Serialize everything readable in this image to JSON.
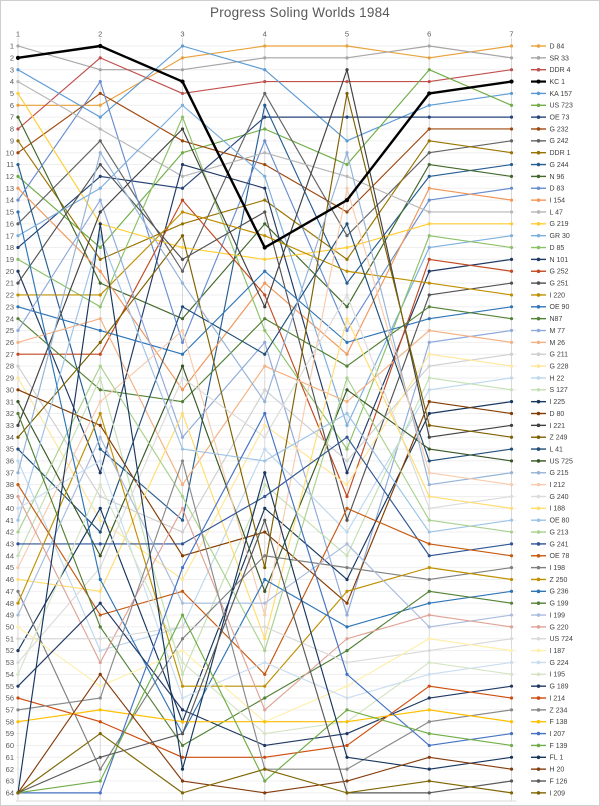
{
  "window_title": "Progress Soling Worlds 1984",
  "chart_data": {
    "type": "line",
    "title": "Progress Soling Worlds 1984",
    "xlabel": "",
    "ylabel": "",
    "x_ticks": [
      1,
      2,
      3,
      4,
      5,
      6,
      7
    ],
    "y_ticks": [
      1,
      2,
      3,
      4,
      5,
      6,
      7,
      8,
      9,
      10,
      11,
      12,
      13,
      14,
      15,
      16,
      17,
      18,
      19,
      20,
      21,
      22,
      23,
      24,
      25,
      26,
      27,
      28,
      29,
      30,
      31,
      32,
      33,
      34,
      35,
      36,
      37,
      38,
      39,
      40,
      41,
      42,
      43,
      44,
      45,
      46,
      47,
      48,
      49,
      50,
      51,
      52,
      53,
      54,
      55,
      56,
      57,
      58,
      59,
      60,
      61,
      62,
      63,
      64
    ],
    "y_axis_inverted": true,
    "xlim": [
      1,
      7
    ],
    "ylim": [
      1,
      64
    ],
    "grid": true,
    "legend_position": "right",
    "axis_color": "#595959",
    "legend_text_color": "#404040",
    "gridline_color_h": "#efefef",
    "gridline_color_v": "#d9d9d9",
    "series": [
      {
        "label": "D 84",
        "color": "#E9A23B",
        "ranks": [
          6,
          6,
          2,
          1,
          1,
          2,
          1
        ]
      },
      {
        "label": "SR 33",
        "color": "#A6A6A6",
        "ranks": [
          1,
          3,
          3,
          2,
          2,
          1,
          2
        ]
      },
      {
        "label": "DDR 4",
        "color": "#C0504D",
        "ranks": [
          8,
          2,
          5,
          4,
          4,
          4,
          3
        ]
      },
      {
        "label": "KC 1",
        "color": "#000000",
        "ranks": [
          2,
          1,
          4,
          18,
          14,
          5,
          4
        ],
        "width": 2.4
      },
      {
        "label": "KA 157",
        "color": "#5B9BD5",
        "ranks": [
          3,
          7,
          1,
          3,
          9,
          6,
          5
        ]
      },
      {
        "label": "US 723",
        "color": "#70AD47",
        "ranks": [
          12,
          18,
          10,
          8,
          11,
          3,
          6
        ]
      },
      {
        "label": "OE 73",
        "color": "#264478",
        "ranks": [
          18,
          12,
          13,
          7,
          7,
          7,
          7
        ]
      },
      {
        "label": "G 232",
        "color": "#9E480E",
        "ranks": [
          10,
          5,
          9,
          11,
          15,
          8,
          8
        ]
      },
      {
        "label": "G 242",
        "color": "#636363",
        "ranks": [
          16,
          9,
          20,
          5,
          17,
          10,
          9
        ]
      },
      {
        "label": "DDR 1",
        "color": "#997300",
        "ranks": [
          9,
          19,
          16,
          14,
          19,
          9,
          10
        ]
      },
      {
        "label": "G 244",
        "color": "#255E91",
        "ranks": [
          11,
          35,
          41,
          6,
          21,
          12,
          11
        ]
      },
      {
        "label": "N 96",
        "color": "#43682B",
        "ranks": [
          7,
          21,
          24,
          16,
          23,
          11,
          12
        ]
      },
      {
        "label": "D 83",
        "color": "#698ED0",
        "ranks": [
          14,
          4,
          26,
          9,
          25,
          14,
          13
        ]
      },
      {
        "label": "I 154",
        "color": "#F1975A",
        "ranks": [
          13,
          20,
          30,
          21,
          27,
          13,
          14
        ]
      },
      {
        "label": "L 47",
        "color": "#B7B7B7",
        "ranks": [
          4,
          8,
          12,
          10,
          12,
          15,
          15
        ]
      },
      {
        "label": "G 219",
        "color": "#FFCD33",
        "ranks": [
          5,
          16,
          18,
          19,
          18,
          16,
          16
        ]
      },
      {
        "label": "GR 30",
        "color": "#7CAFDD",
        "ranks": [
          17,
          13,
          6,
          12,
          33,
          18,
          17
        ]
      },
      {
        "label": "D 85",
        "color": "#8CC168",
        "ranks": [
          19,
          23,
          7,
          25,
          35,
          17,
          18
        ]
      },
      {
        "label": "N 101",
        "color": "#203864",
        "ranks": [
          20,
          37,
          11,
          13,
          37,
          20,
          19
        ]
      },
      {
        "label": "G 252",
        "color": "#C24A22",
        "ranks": [
          27,
          27,
          14,
          22,
          39,
          19,
          20
        ]
      },
      {
        "label": "G 251",
        "color": "#525252",
        "ranks": [
          21,
          11,
          19,
          15,
          41,
          22,
          21
        ]
      },
      {
        "label": "I 220",
        "color": "#BF8F00",
        "ranks": [
          22,
          22,
          15,
          17,
          20,
          21,
          22
        ]
      },
      {
        "label": "OE 90",
        "color": "#2E75B6",
        "ranks": [
          23,
          25,
          27,
          20,
          26,
          24,
          23
        ]
      },
      {
        "label": "N87",
        "color": "#538135",
        "ranks": [
          24,
          30,
          31,
          24,
          28,
          23,
          24
        ]
      },
      {
        "label": "M 77",
        "color": "#8FAADC",
        "ranks": [
          25,
          14,
          34,
          26,
          49,
          26,
          25
        ]
      },
      {
        "label": "M 26",
        "color": "#F4B183",
        "ranks": [
          26,
          24,
          38,
          28,
          31,
          25,
          26
        ]
      },
      {
        "label": "G 211",
        "color": "#D0CECE",
        "ranks": [
          28,
          39,
          42,
          30,
          36,
          28,
          27
        ]
      },
      {
        "label": "G 228",
        "color": "#FFE699",
        "ranks": [
          29,
          41,
          46,
          33,
          38,
          27,
          28
        ]
      },
      {
        "label": "H 22",
        "color": "#BDD7EE",
        "ranks": [
          36,
          52,
          50,
          35,
          42,
          30,
          29
        ]
      },
      {
        "label": "S 127",
        "color": "#C5E0B4",
        "ranks": [
          44,
          29,
          54,
          38,
          44,
          29,
          30
        ]
      },
      {
        "label": "I 225",
        "color": "#17375D",
        "ranks": [
          52,
          40,
          58,
          40,
          46,
          32,
          31
        ]
      },
      {
        "label": "D 80",
        "color": "#833C00",
        "ranks": [
          30,
          33,
          44,
          42,
          48,
          31,
          32
        ]
      },
      {
        "label": "I 221",
        "color": "#404040",
        "ranks": [
          33,
          15,
          8,
          23,
          3,
          34,
          33
        ]
      },
      {
        "label": "Z 249",
        "color": "#7F6000",
        "ranks": [
          34,
          26,
          17,
          45,
          5,
          33,
          34
        ]
      },
      {
        "label": "L 41",
        "color": "#1F4E79",
        "ranks": [
          35,
          42,
          23,
          27,
          16,
          36,
          35
        ]
      },
      {
        "label": "US 725",
        "color": "#375623",
        "ranks": [
          31,
          44,
          28,
          47,
          30,
          35,
          36
        ]
      },
      {
        "label": "G 215",
        "color": "#95B3D7",
        "ranks": [
          37,
          10,
          21,
          31,
          10,
          38,
          37
        ]
      },
      {
        "label": "I 212",
        "color": "#F8CBAD",
        "ranks": [
          45,
          31,
          25,
          49,
          13,
          37,
          38
        ]
      },
      {
        "label": "G 240",
        "color": "#DBDBDB",
        "ranks": [
          53,
          45,
          29,
          34,
          22,
          40,
          39
        ]
      },
      {
        "label": "I 188",
        "color": "#FFDD71",
        "ranks": [
          46,
          47,
          32,
          51,
          24,
          39,
          40
        ]
      },
      {
        "label": "OE 80",
        "color": "#9DC3E6",
        "ranks": [
          41,
          17,
          35,
          36,
          32,
          42,
          41
        ]
      },
      {
        "label": "G 213",
        "color": "#A9D18E",
        "ranks": [
          42,
          28,
          39,
          52,
          29,
          41,
          42
        ]
      },
      {
        "label": "G 241",
        "color": "#2F5597",
        "ranks": [
          43,
          43,
          43,
          39,
          34,
          44,
          43
        ]
      },
      {
        "label": "OE 78",
        "color": "#C55A11",
        "ranks": [
          38,
          49,
          47,
          54,
          40,
          43,
          44
        ]
      },
      {
        "label": "I 198",
        "color": "#7F7F7F",
        "ranks": [
          47,
          62,
          51,
          44,
          45,
          46,
          45
        ]
      },
      {
        "label": "Z 250",
        "color": "#BF9000",
        "ranks": [
          48,
          32,
          55,
          55,
          47,
          45,
          46
        ]
      },
      {
        "label": "G 236",
        "color": "#2E75B6",
        "ranks": [
          15,
          46,
          59,
          46,
          50,
          48,
          47
        ]
      },
      {
        "label": "G 199",
        "color": "#538135",
        "ranks": [
          32,
          50,
          60,
          56,
          52,
          47,
          48
        ]
      },
      {
        "label": "I 199",
        "color": "#A9BCDE",
        "ranks": [
          49,
          34,
          48,
          48,
          43,
          50,
          49
        ]
      },
      {
        "label": "G 220",
        "color": "#DFA296",
        "ranks": [
          39,
          53,
          40,
          57,
          51,
          49,
          50
        ]
      },
      {
        "label": "US 724",
        "color": "#D9D9D9",
        "ranks": [
          51,
          51,
          50,
          50,
          53,
          52,
          51
        ]
      },
      {
        "label": "I 187",
        "color": "#FFEFAD",
        "ranks": [
          50,
          55,
          52,
          58,
          55,
          51,
          52
        ]
      },
      {
        "label": "G 224",
        "color": "#C9DDF1",
        "ranks": [
          40,
          36,
          56,
          53,
          56,
          54,
          53
        ]
      },
      {
        "label": "I 195",
        "color": "#D6E4C6",
        "ranks": [
          54,
          38,
          53,
          59,
          58,
          53,
          54
        ]
      },
      {
        "label": "G 189",
        "color": "#203864",
        "ranks": [
          55,
          48,
          57,
          60,
          59,
          56,
          55
        ]
      },
      {
        "label": "I 214",
        "color": "#CE4B0B",
        "ranks": [
          56,
          58,
          61,
          61,
          60,
          55,
          56
        ]
      },
      {
        "label": "Z 234",
        "color": "#898989",
        "ranks": [
          57,
          56,
          36,
          62,
          62,
          58,
          57
        ]
      },
      {
        "label": "F 138",
        "color": "#FFC000",
        "ranks": [
          58,
          57,
          58,
          58,
          58,
          57,
          58
        ]
      },
      {
        "label": "I 207",
        "color": "#4472C4",
        "ranks": [
          64,
          64,
          45,
          32,
          54,
          60,
          59
        ]
      },
      {
        "label": "F 139",
        "color": "#70AD47",
        "ranks": [
          64,
          63,
          49,
          63,
          57,
          59,
          60
        ]
      },
      {
        "label": "FL 1",
        "color": "#17365D",
        "ranks": [
          64,
          16,
          62,
          37,
          61,
          62,
          61
        ]
      },
      {
        "label": "H 20",
        "color": "#843C0C",
        "ranks": [
          64,
          54,
          63,
          64,
          63,
          61,
          62
        ]
      },
      {
        "label": "F 126",
        "color": "#595959",
        "ranks": [
          64,
          61,
          59,
          41,
          64,
          64,
          63
        ]
      },
      {
        "label": "I 209",
        "color": "#7F6600",
        "ranks": [
          64,
          59,
          64,
          62,
          64,
          63,
          64
        ]
      }
    ]
  }
}
